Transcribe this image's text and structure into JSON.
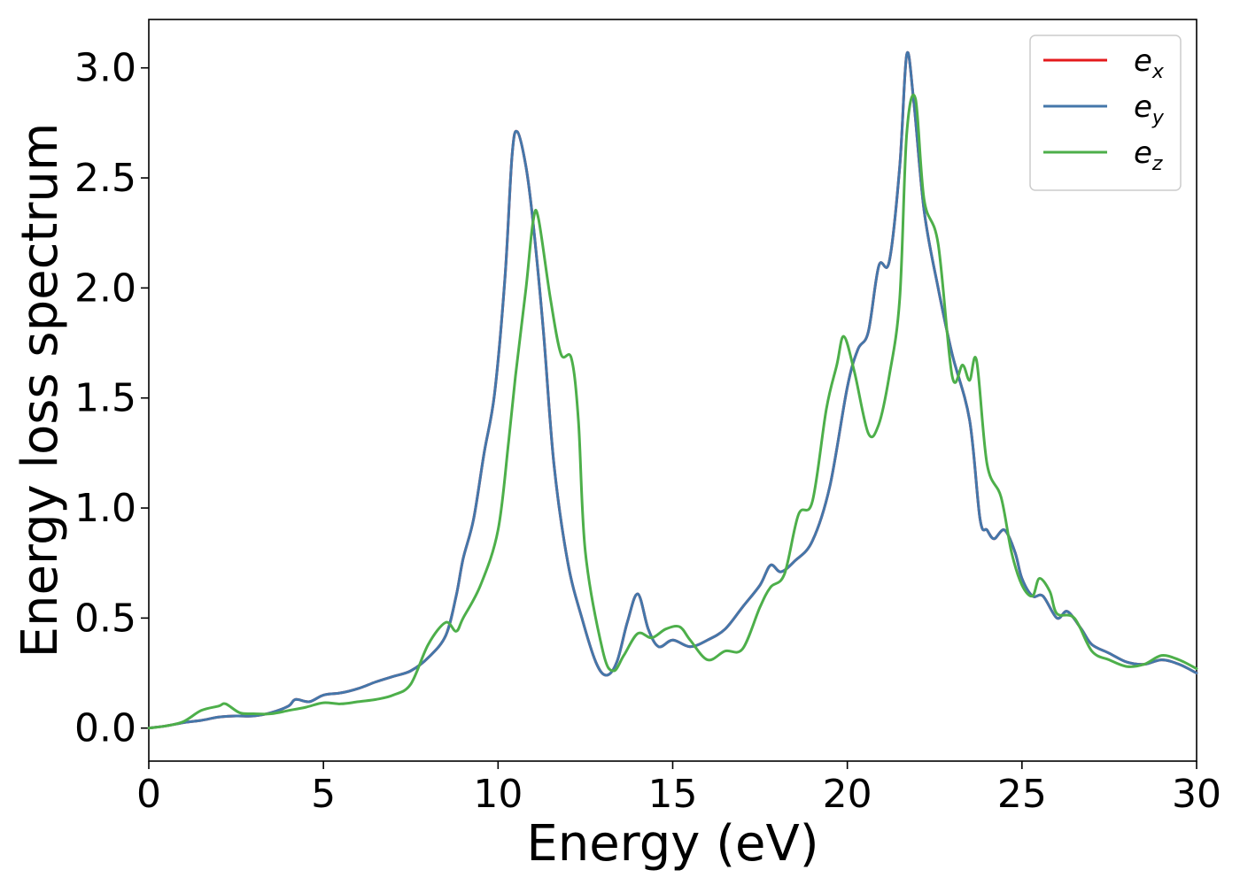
{
  "chart_data": {
    "type": "line",
    "title": "",
    "xlabel": "Energy (eV)",
    "ylabel": "Energy loss spectrum",
    "xlim": [
      0,
      30
    ],
    "ylim": [
      -0.15,
      3.22
    ],
    "xticks": [
      0,
      5,
      10,
      15,
      20,
      25,
      30
    ],
    "yticks": [
      0.0,
      0.5,
      1.0,
      1.5,
      2.0,
      2.5,
      3.0
    ],
    "xtick_labels": [
      "0",
      "5",
      "10",
      "15",
      "20",
      "25",
      "30"
    ],
    "ytick_labels": [
      "0.0",
      "0.5",
      "1.0",
      "1.5",
      "2.0",
      "2.5",
      "3.0"
    ],
    "grid": false,
    "legend_position": "top-right",
    "series": [
      {
        "name": "e_x",
        "legend_base": "e",
        "legend_sub": "x",
        "color": "#e41a1c",
        "points": [
          [
            0,
            0
          ],
          [
            0.5,
            0.01
          ],
          [
            1,
            0.025
          ],
          [
            1.5,
            0.035
          ],
          [
            2,
            0.05
          ],
          [
            2.5,
            0.055
          ],
          [
            3,
            0.055
          ],
          [
            3.5,
            0.07
          ],
          [
            4,
            0.1
          ],
          [
            4.2,
            0.13
          ],
          [
            4.6,
            0.12
          ],
          [
            5,
            0.15
          ],
          [
            5.5,
            0.16
          ],
          [
            6,
            0.18
          ],
          [
            6.5,
            0.21
          ],
          [
            7,
            0.235
          ],
          [
            7.5,
            0.26
          ],
          [
            8,
            0.32
          ],
          [
            8.5,
            0.42
          ],
          [
            8.8,
            0.6
          ],
          [
            9,
            0.77
          ],
          [
            9.3,
            0.95
          ],
          [
            9.6,
            1.25
          ],
          [
            9.9,
            1.52
          ],
          [
            10.2,
            2.05
          ],
          [
            10.4,
            2.6
          ],
          [
            10.55,
            2.71
          ],
          [
            10.8,
            2.55
          ],
          [
            11,
            2.3
          ],
          [
            11.3,
            1.8
          ],
          [
            11.6,
            1.2
          ],
          [
            12,
            0.75
          ],
          [
            12.4,
            0.5
          ],
          [
            12.8,
            0.3
          ],
          [
            13.1,
            0.24
          ],
          [
            13.4,
            0.3
          ],
          [
            13.7,
            0.48
          ],
          [
            14,
            0.61
          ],
          [
            14.3,
            0.45
          ],
          [
            14.6,
            0.37
          ],
          [
            15,
            0.4
          ],
          [
            15.5,
            0.37
          ],
          [
            16,
            0.4
          ],
          [
            16.5,
            0.45
          ],
          [
            17,
            0.55
          ],
          [
            17.5,
            0.65
          ],
          [
            17.8,
            0.74
          ],
          [
            18.1,
            0.71
          ],
          [
            18.5,
            0.76
          ],
          [
            19,
            0.85
          ],
          [
            19.5,
            1.1
          ],
          [
            20,
            1.55
          ],
          [
            20.3,
            1.72
          ],
          [
            20.6,
            1.8
          ],
          [
            20.9,
            2.1
          ],
          [
            21.2,
            2.12
          ],
          [
            21.5,
            2.55
          ],
          [
            21.7,
            3.06
          ],
          [
            21.9,
            2.85
          ],
          [
            22.2,
            2.35
          ],
          [
            22.6,
            2.0
          ],
          [
            23,
            1.7
          ],
          [
            23.5,
            1.4
          ],
          [
            23.8,
            0.95
          ],
          [
            24,
            0.9
          ],
          [
            24.2,
            0.86
          ],
          [
            24.5,
            0.9
          ],
          [
            24.8,
            0.8
          ],
          [
            25,
            0.68
          ],
          [
            25.3,
            0.6
          ],
          [
            25.6,
            0.6
          ],
          [
            26,
            0.5
          ],
          [
            26.3,
            0.53
          ],
          [
            26.7,
            0.45
          ],
          [
            27,
            0.38
          ],
          [
            27.5,
            0.34
          ],
          [
            28,
            0.3
          ],
          [
            28.5,
            0.29
          ],
          [
            29,
            0.31
          ],
          [
            29.5,
            0.29
          ],
          [
            30,
            0.25
          ]
        ]
      },
      {
        "name": "e_y",
        "legend_base": "e",
        "legend_sub": "y",
        "color": "#4477aa",
        "points": [
          [
            0,
            0
          ],
          [
            0.5,
            0.01
          ],
          [
            1,
            0.025
          ],
          [
            1.5,
            0.035
          ],
          [
            2,
            0.05
          ],
          [
            2.5,
            0.055
          ],
          [
            3,
            0.055
          ],
          [
            3.5,
            0.07
          ],
          [
            4,
            0.1
          ],
          [
            4.2,
            0.13
          ],
          [
            4.6,
            0.12
          ],
          [
            5,
            0.15
          ],
          [
            5.5,
            0.16
          ],
          [
            6,
            0.18
          ],
          [
            6.5,
            0.21
          ],
          [
            7,
            0.235
          ],
          [
            7.5,
            0.26
          ],
          [
            8,
            0.32
          ],
          [
            8.5,
            0.42
          ],
          [
            8.8,
            0.6
          ],
          [
            9,
            0.77
          ],
          [
            9.3,
            0.95
          ],
          [
            9.6,
            1.25
          ],
          [
            9.9,
            1.52
          ],
          [
            10.2,
            2.05
          ],
          [
            10.4,
            2.6
          ],
          [
            10.55,
            2.71
          ],
          [
            10.8,
            2.55
          ],
          [
            11,
            2.3
          ],
          [
            11.3,
            1.8
          ],
          [
            11.6,
            1.2
          ],
          [
            12,
            0.75
          ],
          [
            12.4,
            0.5
          ],
          [
            12.8,
            0.3
          ],
          [
            13.1,
            0.24
          ],
          [
            13.4,
            0.3
          ],
          [
            13.7,
            0.48
          ],
          [
            14,
            0.61
          ],
          [
            14.3,
            0.45
          ],
          [
            14.6,
            0.37
          ],
          [
            15,
            0.4
          ],
          [
            15.5,
            0.37
          ],
          [
            16,
            0.4
          ],
          [
            16.5,
            0.45
          ],
          [
            17,
            0.55
          ],
          [
            17.5,
            0.65
          ],
          [
            17.8,
            0.74
          ],
          [
            18.1,
            0.71
          ],
          [
            18.5,
            0.76
          ],
          [
            19,
            0.85
          ],
          [
            19.5,
            1.1
          ],
          [
            20,
            1.55
          ],
          [
            20.3,
            1.72
          ],
          [
            20.6,
            1.8
          ],
          [
            20.9,
            2.1
          ],
          [
            21.2,
            2.12
          ],
          [
            21.5,
            2.55
          ],
          [
            21.7,
            3.06
          ],
          [
            21.9,
            2.85
          ],
          [
            22.2,
            2.35
          ],
          [
            22.6,
            2.0
          ],
          [
            23,
            1.7
          ],
          [
            23.5,
            1.4
          ],
          [
            23.8,
            0.95
          ],
          [
            24,
            0.9
          ],
          [
            24.2,
            0.86
          ],
          [
            24.5,
            0.9
          ],
          [
            24.8,
            0.8
          ],
          [
            25,
            0.68
          ],
          [
            25.3,
            0.6
          ],
          [
            25.6,
            0.6
          ],
          [
            26,
            0.5
          ],
          [
            26.3,
            0.53
          ],
          [
            26.7,
            0.45
          ],
          [
            27,
            0.38
          ],
          [
            27.5,
            0.34
          ],
          [
            28,
            0.3
          ],
          [
            28.5,
            0.29
          ],
          [
            29,
            0.31
          ],
          [
            29.5,
            0.29
          ],
          [
            30,
            0.25
          ]
        ]
      },
      {
        "name": "e_z",
        "legend_base": "e",
        "legend_sub": "z",
        "color": "#4daf4a",
        "points": [
          [
            0,
            0
          ],
          [
            0.5,
            0.01
          ],
          [
            1,
            0.03
          ],
          [
            1.5,
            0.08
          ],
          [
            2,
            0.1
          ],
          [
            2.2,
            0.11
          ],
          [
            2.6,
            0.07
          ],
          [
            3,
            0.065
          ],
          [
            3.5,
            0.065
          ],
          [
            4,
            0.08
          ],
          [
            4.5,
            0.095
          ],
          [
            5,
            0.115
          ],
          [
            5.5,
            0.11
          ],
          [
            6,
            0.12
          ],
          [
            6.5,
            0.13
          ],
          [
            7,
            0.15
          ],
          [
            7.5,
            0.2
          ],
          [
            8,
            0.38
          ],
          [
            8.5,
            0.48
          ],
          [
            8.8,
            0.44
          ],
          [
            9,
            0.5
          ],
          [
            9.5,
            0.65
          ],
          [
            10,
            0.9
          ],
          [
            10.3,
            1.3
          ],
          [
            10.5,
            1.6
          ],
          [
            10.8,
            2.0
          ],
          [
            11,
            2.3
          ],
          [
            11.15,
            2.32
          ],
          [
            11.5,
            1.95
          ],
          [
            11.8,
            1.7
          ],
          [
            12.1,
            1.68
          ],
          [
            12.3,
            1.4
          ],
          [
            12.5,
            0.8
          ],
          [
            13,
            0.35
          ],
          [
            13.3,
            0.26
          ],
          [
            13.6,
            0.33
          ],
          [
            14,
            0.43
          ],
          [
            14.4,
            0.41
          ],
          [
            14.8,
            0.45
          ],
          [
            15.2,
            0.46
          ],
          [
            15.5,
            0.4
          ],
          [
            16,
            0.31
          ],
          [
            16.5,
            0.35
          ],
          [
            17,
            0.36
          ],
          [
            17.5,
            0.55
          ],
          [
            17.8,
            0.64
          ],
          [
            18.2,
            0.7
          ],
          [
            18.6,
            0.97
          ],
          [
            19,
            1.03
          ],
          [
            19.4,
            1.45
          ],
          [
            19.7,
            1.65
          ],
          [
            19.9,
            1.78
          ],
          [
            20.2,
            1.62
          ],
          [
            20.6,
            1.34
          ],
          [
            20.9,
            1.38
          ],
          [
            21.2,
            1.6
          ],
          [
            21.5,
            1.95
          ],
          [
            21.7,
            2.7
          ],
          [
            21.95,
            2.86
          ],
          [
            22.2,
            2.4
          ],
          [
            22.6,
            2.2
          ],
          [
            23,
            1.6
          ],
          [
            23.3,
            1.65
          ],
          [
            23.5,
            1.58
          ],
          [
            23.7,
            1.67
          ],
          [
            24,
            1.2
          ],
          [
            24.4,
            1.05
          ],
          [
            24.7,
            0.8
          ],
          [
            25,
            0.65
          ],
          [
            25.3,
            0.6
          ],
          [
            25.5,
            0.68
          ],
          [
            25.8,
            0.62
          ],
          [
            26,
            0.52
          ],
          [
            26.5,
            0.5
          ],
          [
            27,
            0.35
          ],
          [
            27.5,
            0.31
          ],
          [
            28,
            0.28
          ],
          [
            28.5,
            0.29
          ],
          [
            29,
            0.33
          ],
          [
            29.5,
            0.31
          ],
          [
            30,
            0.27
          ]
        ]
      }
    ]
  }
}
